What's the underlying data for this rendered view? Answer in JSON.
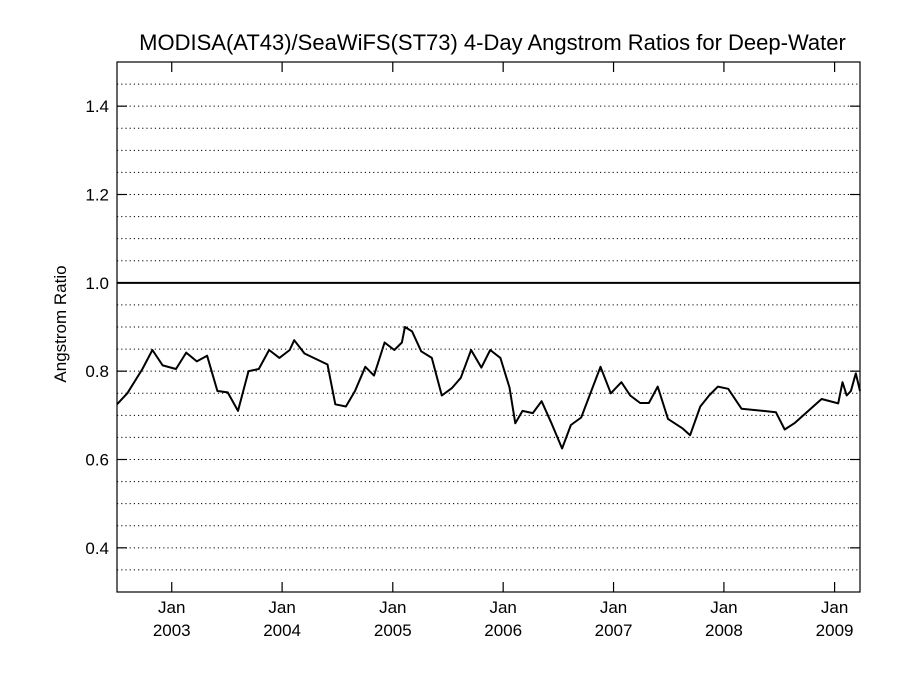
{
  "chart_data": {
    "type": "line",
    "title": "MODISA(AT43)/SeaWiFS(ST73) 4-Day Angstrom Ratios for Deep-Water",
    "xlabel": "",
    "ylabel": "Angstrom Ratio",
    "xlim": [
      "2002-07-04",
      "2009-03-26"
    ],
    "ylim": [
      0.3,
      1.5
    ],
    "y_ticks": [
      0.4,
      0.6,
      0.8,
      1.0,
      1.2,
      1.4
    ],
    "y_tick_labels": [
      "0.4",
      "0.6",
      "0.8",
      "1.0",
      "1.2",
      "1.4"
    ],
    "y_minor_step": 0.05,
    "grid": "dotted horizontal lines every 0.05",
    "reference_line": 1.0,
    "x_ticks": [
      {
        "date": "2003-01-01",
        "month": "Jan",
        "year": "2003"
      },
      {
        "date": "2004-01-01",
        "month": "Jan",
        "year": "2004"
      },
      {
        "date": "2005-01-01",
        "month": "Jan",
        "year": "2005"
      },
      {
        "date": "2006-01-01",
        "month": "Jan",
        "year": "2006"
      },
      {
        "date": "2007-01-01",
        "month": "Jan",
        "year": "2007"
      },
      {
        "date": "2008-01-01",
        "month": "Jan",
        "year": "2008"
      },
      {
        "date": "2009-01-01",
        "month": "Jan",
        "year": "2009"
      }
    ],
    "series": [
      {
        "color": "#000000",
        "points": [
          [
            "2002-07-04",
            0.725
          ],
          [
            "2002-08-07",
            0.75
          ],
          [
            "2002-09-26",
            0.805
          ],
          [
            "2002-10-29",
            0.848
          ],
          [
            "2002-12-02",
            0.813
          ],
          [
            "2003-01-15",
            0.805
          ],
          [
            "2003-02-18",
            0.842
          ],
          [
            "2003-03-25",
            0.822
          ],
          [
            "2003-04-28",
            0.835
          ],
          [
            "2003-06-01",
            0.755
          ],
          [
            "2003-07-05",
            0.752
          ],
          [
            "2003-08-08",
            0.71
          ],
          [
            "2003-09-12",
            0.8
          ],
          [
            "2003-10-16",
            0.805
          ],
          [
            "2003-11-19",
            0.848
          ],
          [
            "2003-12-23",
            0.83
          ],
          [
            "2004-01-26",
            0.848
          ],
          [
            "2004-02-10",
            0.87
          ],
          [
            "2004-03-15",
            0.84
          ],
          [
            "2004-05-30",
            0.815
          ],
          [
            "2004-06-25",
            0.725
          ],
          [
            "2004-07-30",
            0.72
          ],
          [
            "2004-08-29",
            0.755
          ],
          [
            "2004-10-02",
            0.81
          ],
          [
            "2004-10-31",
            0.79
          ],
          [
            "2004-12-05",
            0.865
          ],
          [
            "2005-01-06",
            0.848
          ],
          [
            "2005-01-31",
            0.865
          ],
          [
            "2005-02-10",
            0.9
          ],
          [
            "2005-03-06",
            0.89
          ],
          [
            "2005-04-05",
            0.845
          ],
          [
            "2005-05-10",
            0.83
          ],
          [
            "2005-06-12",
            0.745
          ],
          [
            "2005-07-16",
            0.762
          ],
          [
            "2005-08-14",
            0.785
          ],
          [
            "2005-09-17",
            0.848
          ],
          [
            "2005-10-21",
            0.808
          ],
          [
            "2005-11-19",
            0.848
          ],
          [
            "2005-12-23",
            0.83
          ],
          [
            "2006-01-22",
            0.763
          ],
          [
            "2006-02-10",
            0.682
          ],
          [
            "2006-03-06",
            0.71
          ],
          [
            "2006-04-09",
            0.705
          ],
          [
            "2006-05-08",
            0.732
          ],
          [
            "2006-06-11",
            0.68
          ],
          [
            "2006-07-15",
            0.625
          ],
          [
            "2006-08-13",
            0.678
          ],
          [
            "2006-09-16",
            0.695
          ],
          [
            "2006-11-19",
            0.81
          ],
          [
            "2006-12-23",
            0.75
          ],
          [
            "2007-01-27",
            0.775
          ],
          [
            "2007-02-25",
            0.745
          ],
          [
            "2007-03-30",
            0.728
          ],
          [
            "2007-04-28",
            0.728
          ],
          [
            "2007-05-27",
            0.765
          ],
          [
            "2007-06-30",
            0.692
          ],
          [
            "2007-08-18",
            0.67
          ],
          [
            "2007-09-11",
            0.655
          ],
          [
            "2007-10-15",
            0.72
          ],
          [
            "2007-11-13",
            0.745
          ],
          [
            "2007-12-12",
            0.765
          ],
          [
            "2008-01-15",
            0.76
          ],
          [
            "2008-02-28",
            0.715
          ],
          [
            "2008-06-21",
            0.707
          ],
          [
            "2008-07-20",
            0.668
          ],
          [
            "2008-08-23",
            0.683
          ],
          [
            "2008-11-19",
            0.737
          ],
          [
            "2009-01-13",
            0.727
          ],
          [
            "2009-01-27",
            0.775
          ],
          [
            "2009-02-10",
            0.745
          ],
          [
            "2009-02-24",
            0.755
          ],
          [
            "2009-03-12",
            0.795
          ],
          [
            "2009-03-26",
            0.755
          ]
        ]
      }
    ]
  }
}
